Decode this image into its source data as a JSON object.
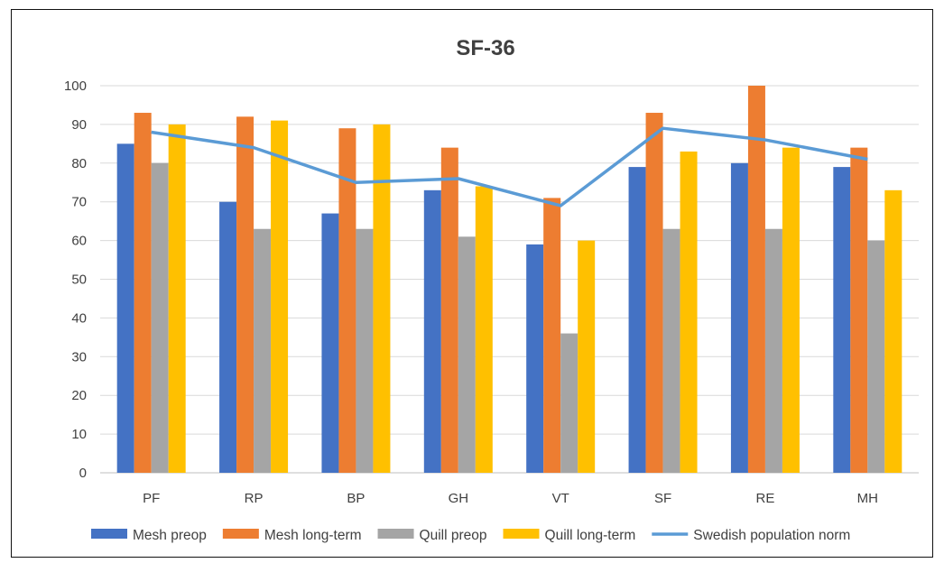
{
  "chart_data": {
    "type": "bar",
    "title": "SF-36",
    "categories": [
      "PF",
      "RP",
      "BP",
      "GH",
      "VT",
      "SF",
      "RE",
      "MH"
    ],
    "ylim": [
      0,
      100
    ],
    "yticks": [
      0,
      10,
      20,
      30,
      40,
      50,
      60,
      70,
      80,
      90,
      100
    ],
    "grid": true,
    "legend_position": "bottom",
    "series": [
      {
        "name": "Mesh preop",
        "type": "bar",
        "color": "#4472C4",
        "values": [
          85,
          70,
          67,
          73,
          59,
          79,
          80,
          79
        ]
      },
      {
        "name": "Mesh long-term",
        "type": "bar",
        "color": "#ED7D31",
        "values": [
          93,
          92,
          89,
          84,
          71,
          93,
          100,
          84
        ]
      },
      {
        "name": "Quill preop",
        "type": "bar",
        "color": "#A5A5A5",
        "values": [
          80,
          63,
          63,
          61,
          36,
          63,
          63,
          60
        ]
      },
      {
        "name": "Quill long-term",
        "type": "bar",
        "color": "#FFC000",
        "values": [
          90,
          91,
          90,
          74,
          60,
          83,
          84,
          73
        ]
      },
      {
        "name": "Swedish population norm",
        "type": "line",
        "color": "#5B9BD5",
        "values": [
          88,
          84,
          75,
          76,
          69,
          89,
          86,
          81
        ]
      }
    ]
  }
}
